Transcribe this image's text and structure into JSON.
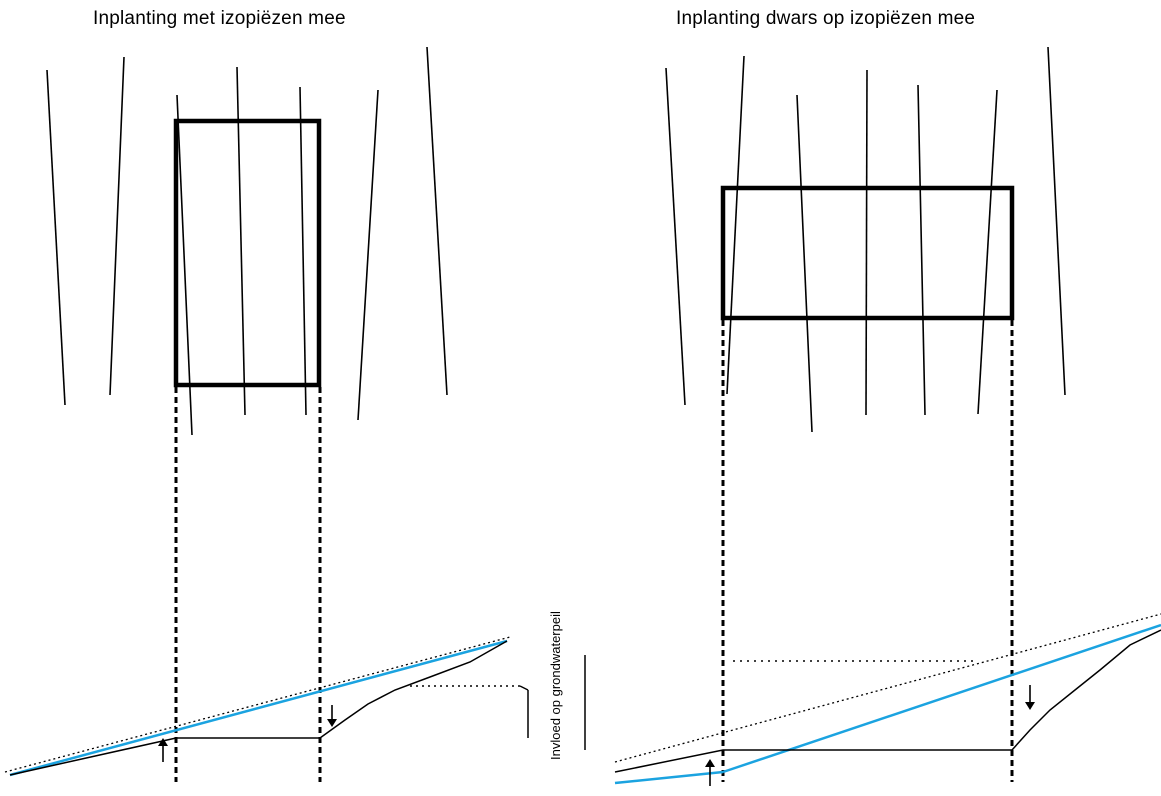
{
  "left_panel": {
    "title": "Inplanting met izopiëzen mee"
  },
  "right_panel": {
    "title": "Inplanting dwars op izopiëzen mee"
  },
  "side_label": "Invloed op grondwaterpeil",
  "colors": {
    "line": "#000000",
    "groundwater_line": "#1ba3e0",
    "background": "#ffffff"
  }
}
